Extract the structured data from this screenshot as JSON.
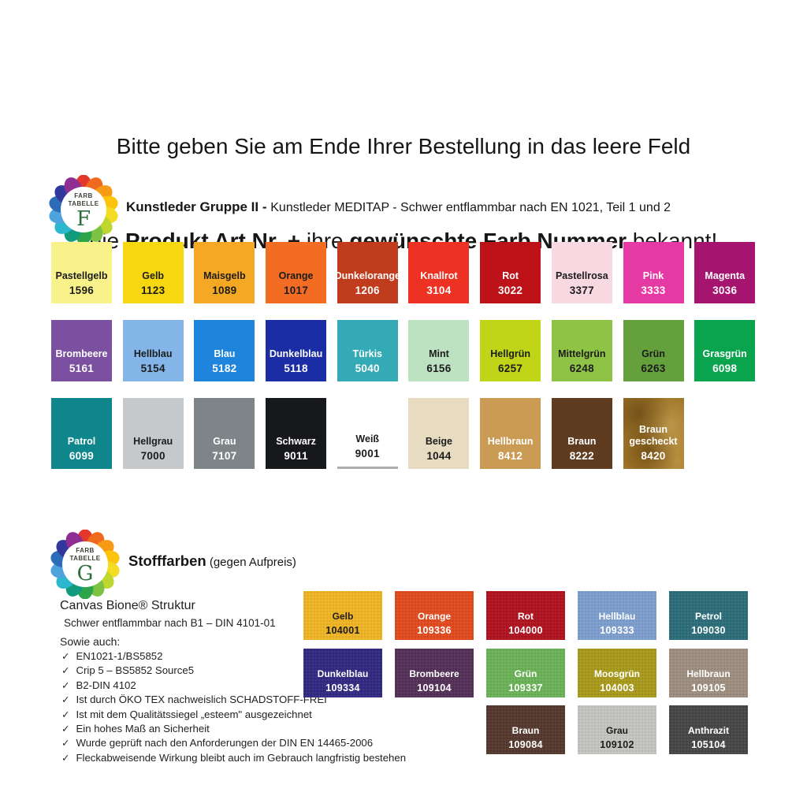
{
  "header": {
    "line1": "Bitte geben Sie am Ende Ihrer Bestellung in das leere Feld",
    "line2_p1": "die ",
    "line2_b1": "Produkt Art.Nr. +",
    "line2_p2": " ihre ",
    "line2_b2": "gewünschte Farb Nummer",
    "line2_p3": " bekannt!"
  },
  "logo_petal_colors": [
    "#E3372B",
    "#EF6A1F",
    "#F79B17",
    "#FCC50C",
    "#F2DC24",
    "#BFD62F",
    "#7DC242",
    "#2EA44A",
    "#119B7C",
    "#2BB7CD",
    "#4FA3DC",
    "#2C6CB8",
    "#31379B",
    "#8E2D92"
  ],
  "logo_f": {
    "top": "FARB",
    "bottom": "TABELLE",
    "letter": "F"
  },
  "logo_g": {
    "top": "FARB",
    "bottom": "TABELLE",
    "letter": "G"
  },
  "section_f": {
    "title_bold": "Kunstleder Gruppe II - ",
    "title_regular": "Kunstleder MEDITAP - Schwer entflammbar nach EN 1021, Teil 1 und 2",
    "rows": [
      [
        {
          "name": "Pastellgelb",
          "code": "1596",
          "color": "#F9F28B",
          "text": "dark"
        },
        {
          "name": "Gelb",
          "code": "1123",
          "color": "#F7D70F",
          "text": "dark"
        },
        {
          "name": "Maisgelb",
          "code": "1089",
          "color": "#F5A823",
          "text": "dark"
        },
        {
          "name": "Orange",
          "code": "1017",
          "color": "#F26C23",
          "text": "dark"
        },
        {
          "name": "Dunkelorange",
          "code": "1206",
          "color": "#C13C1C",
          "text": "light"
        },
        {
          "name": "Knallrot",
          "code": "3104",
          "color": "#ED3123",
          "text": "light"
        },
        {
          "name": "Rot",
          "code": "3022",
          "color": "#BD1318",
          "text": "light"
        },
        {
          "name": "Pastellrosa",
          "code": "3377",
          "color": "#F8D8E1",
          "text": "dark"
        },
        {
          "name": "Pink",
          "code": "3333",
          "color": "#E53AA4",
          "text": "light"
        },
        {
          "name": "Magenta",
          "code": "3036",
          "color": "#A5146E",
          "text": "light"
        }
      ],
      [
        {
          "name": "Brombeere",
          "code": "5161",
          "color": "#7C50A0",
          "text": "light"
        },
        {
          "name": "Hellblau",
          "code": "5154",
          "color": "#83B5E8",
          "text": "dark"
        },
        {
          "name": "Blau",
          "code": "5182",
          "color": "#1E84DC",
          "text": "light"
        },
        {
          "name": "Dunkelblau",
          "code": "5118",
          "color": "#1B2DA4",
          "text": "light"
        },
        {
          "name": "Türkis",
          "code": "5040",
          "color": "#33AAB5",
          "text": "light"
        },
        {
          "name": "Mint",
          "code": "6156",
          "color": "#BCE2C1",
          "text": "dark"
        },
        {
          "name": "Hellgrün",
          "code": "6257",
          "color": "#C0D517",
          "text": "dark"
        },
        {
          "name": "Mittelgrün",
          "code": "6248",
          "color": "#8FC346",
          "text": "dark"
        },
        {
          "name": "Grün",
          "code": "6263",
          "color": "#64A03C",
          "text": "dark"
        },
        {
          "name": "Grasgrün",
          "code": "6098",
          "color": "#0BA44E",
          "text": "light"
        }
      ],
      [
        {
          "name": "Patrol",
          "code": "6099",
          "color": "#0F868C",
          "text": "light"
        },
        {
          "name": "Hellgrau",
          "code": "7000",
          "color": "#C6C9CC",
          "text": "dark"
        },
        {
          "name": "Grau",
          "code": "7107",
          "color": "#7E8588",
          "text": "light"
        },
        {
          "name": "Schwarz",
          "code": "9011",
          "color": "#17181B",
          "text": "light"
        },
        {
          "name": "Weiß",
          "code": "9001",
          "color": "#FFFFFF",
          "text": "dark",
          "underline": true
        },
        {
          "name": "Beige",
          "code": "1044",
          "color": "#E7DCC1",
          "text": "dark"
        },
        {
          "name": "Hellbraun",
          "code": "8412",
          "color": "#C99B55",
          "text": "light"
        },
        {
          "name": "Braun",
          "code": "8222",
          "color": "#5F3B1F",
          "text": "light"
        },
        {
          "name": "Braun gescheckt",
          "code": "8420",
          "color": "#9E7428",
          "text": "light",
          "speckled": true
        }
      ]
    ]
  },
  "section_g": {
    "title_bold": "Stofffarben",
    "title_regular": " (gegen Aufpreis)",
    "info_title": "Canvas Bione® Struktur",
    "info_subtitle": "Schwer entflammbar nach B1 – DIN 4101-01",
    "list_intro": "Sowie auch:",
    "check_glyph": "✓",
    "checklist": [
      "EN1021-1/BS5852",
      "Crip 5 – BS5852 Source5",
      "B2-DIN 4102",
      "Ist durch ÖKO TEX nachweislich SCHADSTOFF-FREI",
      "Ist mit dem Qualitätssiegel „esteem\" ausgezeichnet",
      "Ein hohes Maß an Sicherheit",
      "Wurde geprüft nach den Anforderungen der DIN EN 14465-2006",
      "Fleckabweisende Wirkung bleibt auch im Gebrauch langfristig bestehen"
    ],
    "rows": [
      {
        "offset": 0,
        "swatches": [
          {
            "name": "Gelb",
            "code": "104001",
            "color": "#EFB425",
            "text": "dark"
          },
          {
            "name": "Orange",
            "code": "109336",
            "color": "#E04B20",
            "text": "light"
          },
          {
            "name": "Rot",
            "code": "104000",
            "color": "#B01421",
            "text": "light"
          },
          {
            "name": "Hellblau",
            "code": "109333",
            "color": "#7E9ECD",
            "text": "light"
          },
          {
            "name": "Petrol",
            "code": "109030",
            "color": "#2E6E7A",
            "text": "light"
          }
        ]
      },
      {
        "offset": 0,
        "swatches": [
          {
            "name": "Dunkelblau",
            "code": "109334",
            "color": "#332A82",
            "text": "light"
          },
          {
            "name": "Brombeere",
            "code": "109104",
            "color": "#543158",
            "text": "light"
          },
          {
            "name": "Grün",
            "code": "109337",
            "color": "#6BB157",
            "text": "light"
          },
          {
            "name": "Moosgrün",
            "code": "104003",
            "color": "#A89A1D",
            "text": "light"
          },
          {
            "name": "Hellbraun",
            "code": "109105",
            "color": "#9D8E7F",
            "text": "light"
          }
        ]
      },
      {
        "offset": 2,
        "swatches": [
          {
            "name": "Braun",
            "code": "109084",
            "color": "#56392F",
            "text": "light"
          },
          {
            "name": "Grau",
            "code": "109102",
            "color": "#C4C4C0",
            "text": "dark"
          },
          {
            "name": "Anthrazit",
            "code": "105104",
            "color": "#474747",
            "text": "light"
          }
        ]
      }
    ]
  }
}
